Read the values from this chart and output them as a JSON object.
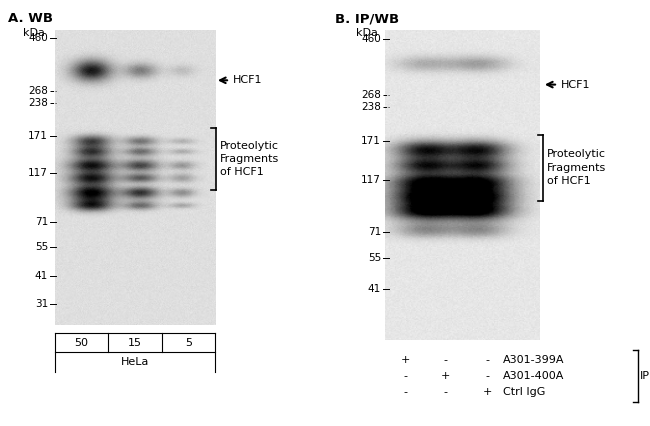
{
  "panel_A_title": "A. WB",
  "panel_B_title": "B. IP/WB",
  "kda_label": "kDa",
  "mw_markers_A": [
    460,
    268,
    238,
    171,
    117,
    71,
    55,
    41,
    31
  ],
  "mw_markers_B": [
    460,
    268,
    238,
    171,
    117,
    71,
    55,
    41
  ],
  "hcf1_label": "HCF1",
  "prot_frag_label": "Proteolytic\nFragments\nof HCF1",
  "lane_labels_A": [
    "50",
    "15",
    "5"
  ],
  "cell_line_A": "HeLa",
  "ip_labels": [
    "A301-399A",
    "A301-400A",
    "Ctrl IgG"
  ],
  "ip_signs_col1": [
    "+",
    "-",
    "-"
  ],
  "ip_signs_col2": [
    "-",
    "+",
    "-"
  ],
  "ip_signs_col3": [
    "-",
    "-",
    "+"
  ],
  "ip_bracket_label": "IP",
  "white": "#ffffff",
  "black": "#000000",
  "light_gray": "#cccccc",
  "gel_A_bg": 0.87,
  "gel_B_bg": 0.9,
  "noise_std": 0.012
}
